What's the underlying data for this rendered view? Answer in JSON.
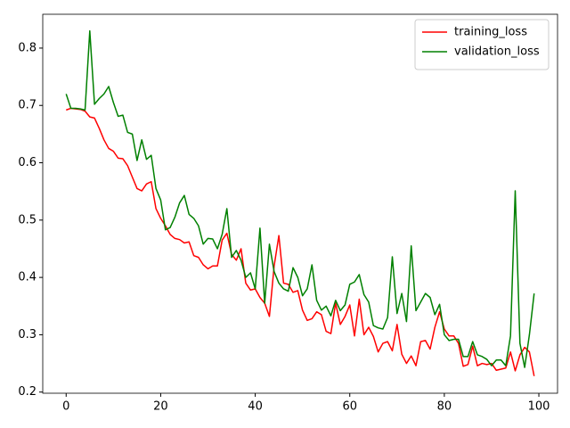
{
  "chart_data": {
    "type": "line",
    "x": [
      0,
      1,
      2,
      3,
      4,
      5,
      6,
      7,
      8,
      9,
      10,
      11,
      12,
      13,
      14,
      15,
      16,
      17,
      18,
      19,
      20,
      21,
      22,
      23,
      24,
      25,
      26,
      27,
      28,
      29,
      30,
      31,
      32,
      33,
      34,
      35,
      36,
      37,
      38,
      39,
      40,
      41,
      42,
      43,
      44,
      45,
      46,
      47,
      48,
      49,
      50,
      51,
      52,
      53,
      54,
      55,
      56,
      57,
      58,
      59,
      60,
      61,
      62,
      63,
      64,
      65,
      66,
      67,
      68,
      69,
      70,
      71,
      72,
      73,
      74,
      75,
      76,
      77,
      78,
      79,
      80,
      81,
      82,
      83,
      84,
      85,
      86,
      87,
      88,
      89,
      90,
      91,
      92,
      93,
      94,
      95,
      96,
      97,
      98,
      99
    ],
    "series": [
      {
        "name": "training_loss",
        "color": "#ff0000",
        "values": [
          0.692,
          0.695,
          0.694,
          0.693,
          0.69,
          0.68,
          0.678,
          0.66,
          0.64,
          0.625,
          0.62,
          0.608,
          0.607,
          0.595,
          0.575,
          0.555,
          0.551,
          0.563,
          0.567,
          0.52,
          0.503,
          0.49,
          0.475,
          0.468,
          0.466,
          0.46,
          0.462,
          0.438,
          0.435,
          0.422,
          0.415,
          0.42,
          0.42,
          0.465,
          0.477,
          0.44,
          0.43,
          0.45,
          0.39,
          0.378,
          0.38,
          0.365,
          0.355,
          0.332,
          0.42,
          0.473,
          0.39,
          0.388,
          0.374,
          0.377,
          0.343,
          0.325,
          0.328,
          0.34,
          0.335,
          0.306,
          0.302,
          0.355,
          0.318,
          0.332,
          0.352,
          0.298,
          0.362,
          0.3,
          0.313,
          0.297,
          0.27,
          0.285,
          0.288,
          0.272,
          0.318,
          0.266,
          0.25,
          0.263,
          0.246,
          0.288,
          0.29,
          0.275,
          0.313,
          0.34,
          0.31,
          0.298,
          0.298,
          0.285,
          0.245,
          0.248,
          0.28,
          0.246,
          0.25,
          0.248,
          0.25,
          0.238,
          0.24,
          0.242,
          0.27,
          0.237,
          0.265,
          0.278,
          0.27,
          0.228
        ]
      },
      {
        "name": "validation_loss",
        "color": "#008000",
        "values": [
          0.72,
          0.695,
          0.695,
          0.694,
          0.692,
          0.83,
          0.702,
          0.712,
          0.72,
          0.733,
          0.705,
          0.681,
          0.683,
          0.653,
          0.65,
          0.604,
          0.64,
          0.606,
          0.613,
          0.555,
          0.535,
          0.483,
          0.487,
          0.505,
          0.53,
          0.543,
          0.51,
          0.503,
          0.49,
          0.458,
          0.468,
          0.467,
          0.45,
          0.475,
          0.52,
          0.435,
          0.447,
          0.43,
          0.4,
          0.408,
          0.38,
          0.486,
          0.355,
          0.458,
          0.41,
          0.39,
          0.38,
          0.376,
          0.417,
          0.4,
          0.368,
          0.38,
          0.422,
          0.36,
          0.343,
          0.35,
          0.333,
          0.36,
          0.342,
          0.352,
          0.388,
          0.392,
          0.405,
          0.37,
          0.357,
          0.316,
          0.312,
          0.31,
          0.33,
          0.436,
          0.337,
          0.372,
          0.323,
          0.455,
          0.342,
          0.357,
          0.372,
          0.365,
          0.335,
          0.353,
          0.3,
          0.29,
          0.292,
          0.292,
          0.262,
          0.262,
          0.288,
          0.265,
          0.262,
          0.257,
          0.246,
          0.256,
          0.256,
          0.246,
          0.298,
          0.551,
          0.285,
          0.243,
          0.3,
          0.372
        ]
      }
    ],
    "xlim": [
      -4.95,
      103.95
    ],
    "ylim": [
      0.198,
      0.859
    ],
    "xticks": [
      0,
      20,
      40,
      60,
      80,
      100
    ],
    "yticks": [
      0.2,
      0.3,
      0.4,
      0.5,
      0.6,
      0.7,
      0.8
    ],
    "legend": "upper right"
  }
}
